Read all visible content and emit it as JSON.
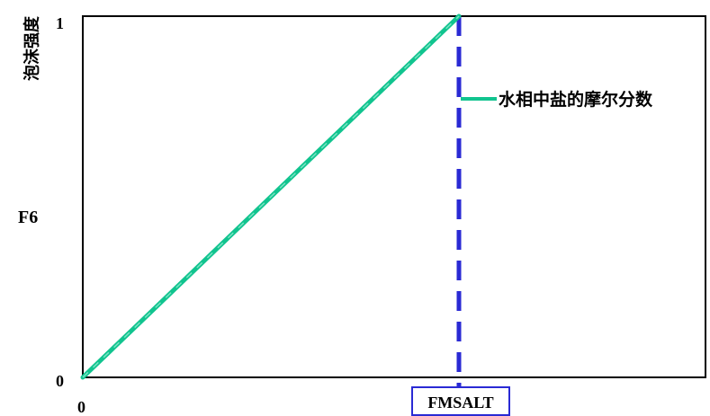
{
  "chart_data": {
    "type": "line",
    "title": "",
    "ylabel_vertical": "泡沫强度",
    "ylabel_symbol": "F6",
    "xlabel_symbol": "FMSALT",
    "x_range": [
      0,
      1
    ],
    "y_range": [
      0,
      1
    ],
    "x_tick_labels": [
      "0"
    ],
    "y_tick_labels": [
      "0",
      "1"
    ],
    "series": [
      {
        "x": [
          0,
          1
        ],
        "y": [
          0,
          1
        ]
      }
    ],
    "reference_line": {
      "x": 1,
      "style": "dashed"
    },
    "annotation": {
      "text": "水相中盐的摩尔分数"
    },
    "colors": {
      "series": "#11c48f",
      "reference": "#2a2ad4",
      "frame": "#000000",
      "xlabel_border": "#2a2ad4"
    }
  }
}
